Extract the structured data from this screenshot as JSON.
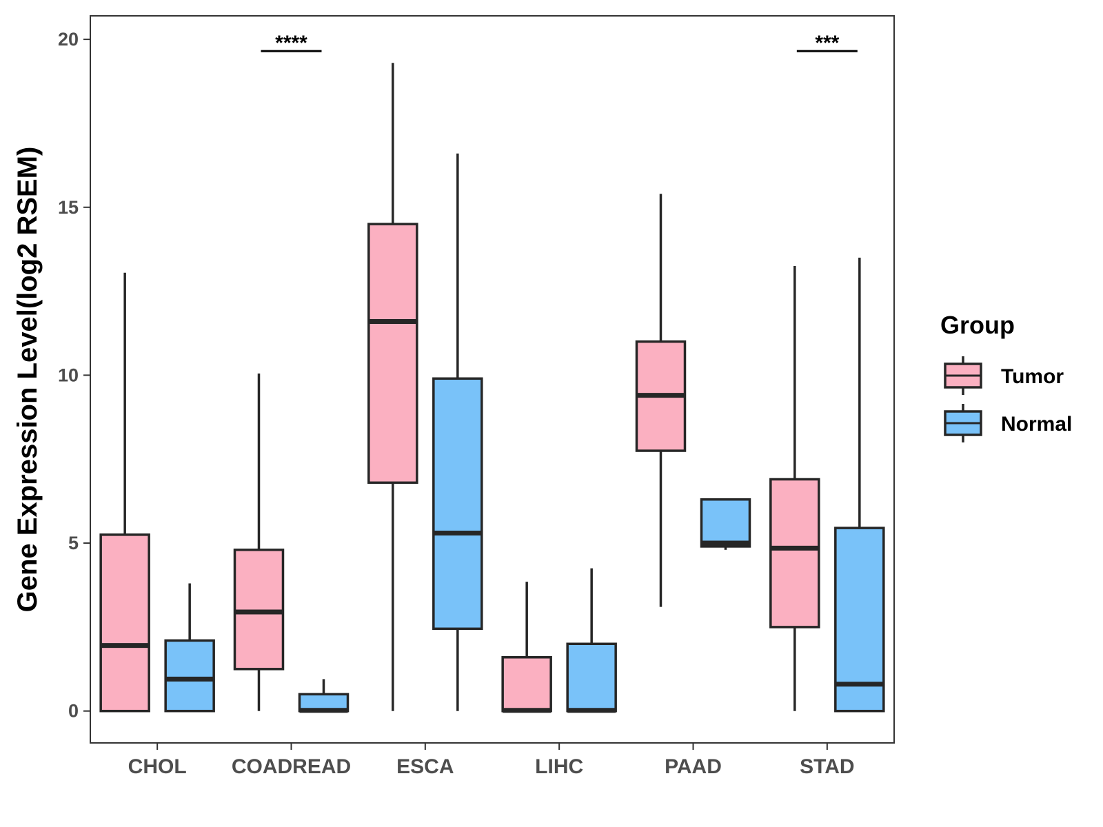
{
  "chart_data": {
    "type": "boxplot",
    "title": "",
    "xlabel": "",
    "ylabel": "Gene Expression Level(log2 RSEM)",
    "ylim": [
      -0.95,
      20.7
    ],
    "yticks": [
      0,
      5,
      10,
      15,
      20
    ],
    "categories": [
      "CHOL",
      "COADREAD",
      "ESCA",
      "LIHC",
      "PAAD",
      "STAD"
    ],
    "legend": {
      "title": "Group",
      "position": "right",
      "entries": [
        {
          "name": "Tumor",
          "color": "#fbb0c1"
        },
        {
          "name": "Normal",
          "color": "#79c2f9"
        }
      ]
    },
    "series": [
      {
        "name": "Tumor",
        "color": "#fbb0c1",
        "boxes": [
          {
            "category": "CHOL",
            "whisker_low": 0,
            "q1": 0,
            "median": 1.95,
            "q3": 5.25,
            "whisker_high": 13.05
          },
          {
            "category": "COADREAD",
            "whisker_low": 0,
            "q1": 1.25,
            "median": 2.95,
            "q3": 4.8,
            "whisker_high": 10.05
          },
          {
            "category": "ESCA",
            "whisker_low": 0,
            "q1": 6.8,
            "median": 11.6,
            "q3": 14.5,
            "whisker_high": 19.3
          },
          {
            "category": "LIHC",
            "whisker_low": 0,
            "q1": 0,
            "median": 0.02,
            "q3": 1.6,
            "whisker_high": 3.85
          },
          {
            "category": "PAAD",
            "whisker_low": 3.1,
            "q1": 7.75,
            "median": 9.4,
            "q3": 11.0,
            "whisker_high": 15.4
          },
          {
            "category": "STAD",
            "whisker_low": 0,
            "q1": 2.5,
            "median": 4.85,
            "q3": 6.9,
            "whisker_high": 13.25
          }
        ]
      },
      {
        "name": "Normal",
        "color": "#79c2f9",
        "boxes": [
          {
            "category": "CHOL",
            "whisker_low": 0,
            "q1": 0,
            "median": 0.95,
            "q3": 2.1,
            "whisker_high": 3.8
          },
          {
            "category": "COADREAD",
            "whisker_low": 0,
            "q1": 0,
            "median": 0.02,
            "q3": 0.5,
            "whisker_high": 0.95
          },
          {
            "category": "ESCA",
            "whisker_low": 0,
            "q1": 2.45,
            "median": 5.3,
            "q3": 9.9,
            "whisker_high": 16.6
          },
          {
            "category": "LIHC",
            "whisker_low": 0,
            "q1": 0,
            "median": 0.02,
            "q3": 2.0,
            "whisker_high": 4.25
          },
          {
            "category": "PAAD",
            "whisker_low": 4.8,
            "q1": 4.9,
            "median": 5.0,
            "q3": 6.3,
            "whisker_high": 6.3
          },
          {
            "category": "STAD",
            "whisker_low": 0,
            "q1": 0,
            "median": 0.8,
            "q3": 5.45,
            "whisker_high": 13.5
          }
        ]
      }
    ],
    "annotations": [
      {
        "category": "COADREAD",
        "label": "****",
        "y": 19.65
      },
      {
        "category": "STAD",
        "label": "***",
        "y": 19.65
      }
    ]
  }
}
